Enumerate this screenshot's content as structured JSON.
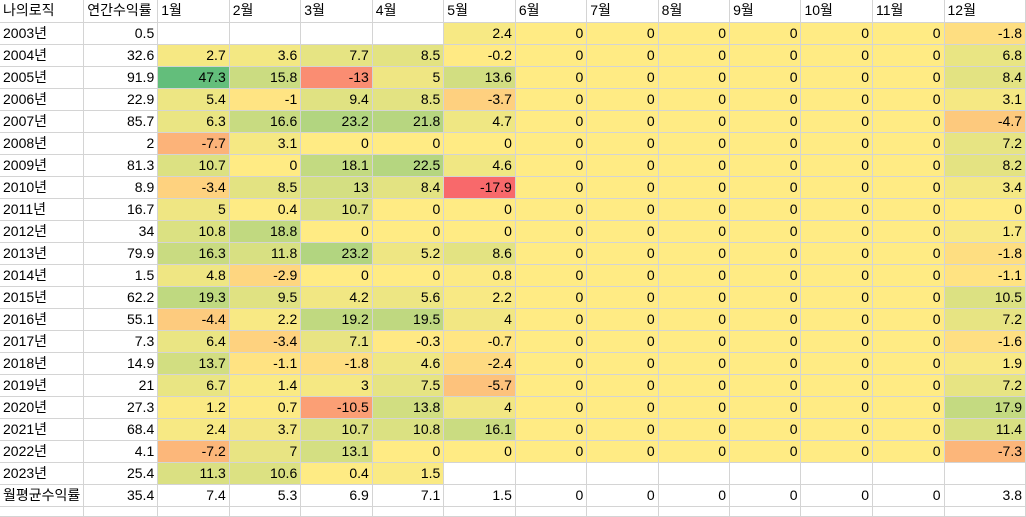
{
  "header": [
    "나의로직",
    "연간수익률",
    "1월",
    "2월",
    "3월",
    "4월",
    "5월",
    "6월",
    "7월",
    "8월",
    "9월",
    "10월",
    "11월",
    "12월"
  ],
  "rows": [
    {
      "label": "2003년",
      "annual": "0.5",
      "m": [
        "",
        "",
        "",
        "",
        "2.4",
        "0",
        "0",
        "0",
        "0",
        "0",
        "0",
        "-1.8"
      ]
    },
    {
      "label": "2004년",
      "annual": "32.6",
      "m": [
        "2.7",
        "3.6",
        "7.7",
        "8.5",
        "-0.2",
        "0",
        "0",
        "0",
        "0",
        "0",
        "0",
        "6.8"
      ]
    },
    {
      "label": "2005년",
      "annual": "91.9",
      "m": [
        "47.3",
        "15.8",
        "-13",
        "5",
        "13.6",
        "0",
        "0",
        "0",
        "0",
        "0",
        "0",
        "8.4"
      ]
    },
    {
      "label": "2006년",
      "annual": "22.9",
      "m": [
        "5.4",
        "-1",
        "9.4",
        "8.5",
        "-3.7",
        "0",
        "0",
        "0",
        "0",
        "0",
        "0",
        "3.1"
      ]
    },
    {
      "label": "2007년",
      "annual": "85.7",
      "m": [
        "6.3",
        "16.6",
        "23.2",
        "21.8",
        "4.7",
        "0",
        "0",
        "0",
        "0",
        "0",
        "0",
        "-4.7"
      ]
    },
    {
      "label": "2008년",
      "annual": "2",
      "m": [
        "-7.7",
        "3.1",
        "0",
        "0",
        "0",
        "0",
        "0",
        "0",
        "0",
        "0",
        "0",
        "7.2"
      ]
    },
    {
      "label": "2009년",
      "annual": "81.3",
      "m": [
        "10.7",
        "0",
        "18.1",
        "22.5",
        "4.6",
        "0",
        "0",
        "0",
        "0",
        "0",
        "0",
        "8.2"
      ]
    },
    {
      "label": "2010년",
      "annual": "8.9",
      "m": [
        "-3.4",
        "8.5",
        "13",
        "8.4",
        "-17.9",
        "0",
        "0",
        "0",
        "0",
        "0",
        "0",
        "3.4"
      ]
    },
    {
      "label": "2011년",
      "annual": "16.7",
      "m": [
        "5",
        "0.4",
        "10.7",
        "0",
        "0",
        "0",
        "0",
        "0",
        "0",
        "0",
        "0",
        "0"
      ]
    },
    {
      "label": "2012년",
      "annual": "34",
      "m": [
        "10.8",
        "18.8",
        "0",
        "0",
        "0",
        "0",
        "0",
        "0",
        "0",
        "0",
        "0",
        "1.7"
      ]
    },
    {
      "label": "2013년",
      "annual": "79.9",
      "m": [
        "16.3",
        "11.8",
        "23.2",
        "5.2",
        "8.6",
        "0",
        "0",
        "0",
        "0",
        "0",
        "0",
        "-1.8"
      ]
    },
    {
      "label": "2014년",
      "annual": "1.5",
      "m": [
        "4.8",
        "-2.9",
        "0",
        "0",
        "0.8",
        "0",
        "0",
        "0",
        "0",
        "0",
        "0",
        "-1.1"
      ]
    },
    {
      "label": "2015년",
      "annual": "62.2",
      "m": [
        "19.3",
        "9.5",
        "4.2",
        "5.6",
        "2.2",
        "0",
        "0",
        "0",
        "0",
        "0",
        "0",
        "10.5"
      ]
    },
    {
      "label": "2016년",
      "annual": "55.1",
      "m": [
        "-4.4",
        "2.2",
        "19.2",
        "19.5",
        "4",
        "0",
        "0",
        "0",
        "0",
        "0",
        "0",
        "7.2"
      ]
    },
    {
      "label": "2017년",
      "annual": "7.3",
      "m": [
        "6.4",
        "-3.4",
        "7.1",
        "-0.3",
        "-0.7",
        "0",
        "0",
        "0",
        "0",
        "0",
        "0",
        "-1.6"
      ]
    },
    {
      "label": "2018년",
      "annual": "14.9",
      "m": [
        "13.7",
        "-1.1",
        "-1.8",
        "4.6",
        "-2.4",
        "0",
        "0",
        "0",
        "0",
        "0",
        "0",
        "1.9"
      ]
    },
    {
      "label": "2019년",
      "annual": "21",
      "m": [
        "6.7",
        "1.4",
        "3",
        "7.5",
        "-5.7",
        "0",
        "0",
        "0",
        "0",
        "0",
        "0",
        "7.2"
      ]
    },
    {
      "label": "2020년",
      "annual": "27.3",
      "m": [
        "1.2",
        "0.7",
        "-10.5",
        "13.8",
        "4",
        "0",
        "0",
        "0",
        "0",
        "0",
        "0",
        "17.9"
      ]
    },
    {
      "label": "2021년",
      "annual": "68.4",
      "m": [
        "2.4",
        "3.7",
        "10.7",
        "10.8",
        "16.1",
        "0",
        "0",
        "0",
        "0",
        "0",
        "0",
        "11.4"
      ]
    },
    {
      "label": "2022년",
      "annual": "4.1",
      "m": [
        "-7.2",
        "7",
        "13.1",
        "0",
        "0",
        "0",
        "0",
        "0",
        "0",
        "0",
        "0",
        "-7.3"
      ]
    },
    {
      "label": "2023년",
      "annual": "25.4",
      "m": [
        "11.3",
        "10.6",
        "0.4",
        "1.5",
        "",
        "",
        "",
        "",
        "",
        "",
        "",
        ""
      ]
    }
  ],
  "average_row": {
    "label": "월평균수익률",
    "annual": "35.4",
    "m": [
      "7.4",
      "5.3",
      "6.9",
      "7.1",
      "1.5",
      "0",
      "0",
      "0",
      "0",
      "0",
      "0",
      "3.8"
    ]
  },
  "colors": {
    "scale_low": "#f8696b",
    "scale_mid": "#ffeb84",
    "scale_high": "#63be7b",
    "grid": "#d4d4d4",
    "background": "#ffffff"
  }
}
